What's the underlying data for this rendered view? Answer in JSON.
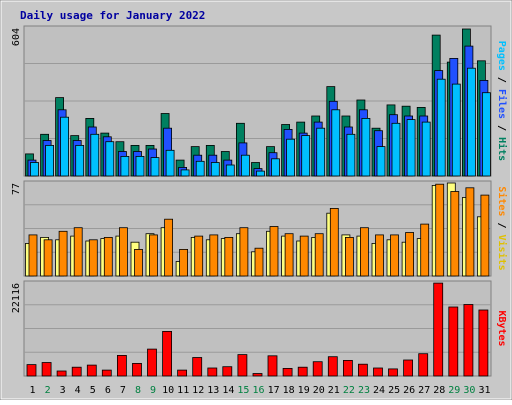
{
  "chart_data": {
    "type": "bar",
    "title": "Daily usage for January 2022",
    "days": [
      "1",
      "2",
      "3",
      "4",
      "5",
      "6",
      "7",
      "8",
      "9",
      "10",
      "11",
      "12",
      "13",
      "14",
      "15",
      "16",
      "17",
      "18",
      "19",
      "20",
      "21",
      "22",
      "23",
      "24",
      "25",
      "26",
      "27",
      "28",
      "29",
      "30",
      "31"
    ],
    "weekend_days": [
      "2",
      "8",
      "9",
      "15",
      "16",
      "22",
      "23",
      "29",
      "30"
    ],
    "panels": [
      {
        "id": "top",
        "ymax": 604,
        "ymax_label": "604",
        "axis_label_parts": [
          "Pages",
          "Files",
          "Hits"
        ],
        "axis_label_colors": [
          "#00c0ff",
          "#2050ff",
          "#008060"
        ],
        "series": [
          {
            "name": "Hits",
            "color": "#008060",
            "values": [
              90,
              170,
              320,
              165,
              235,
              175,
              140,
              125,
              125,
              255,
              65,
              120,
              125,
              100,
              215,
              55,
              120,
              210,
              220,
              245,
              365,
              245,
              310,
              195,
              290,
              285,
              280,
              575,
              465,
              600,
              470
            ]
          },
          {
            "name": "Files",
            "color": "#2050ff",
            "values": [
              65,
              145,
              270,
              145,
              200,
              160,
              100,
              100,
              110,
              195,
              35,
              85,
              85,
              65,
              135,
              30,
              95,
              190,
              175,
              220,
              305,
              200,
              270,
              185,
              250,
              245,
              245,
              430,
              480,
              530,
              390
            ]
          },
          {
            "name": "Pages",
            "color": "#00c0ff",
            "values": [
              55,
              125,
              240,
              125,
              170,
              140,
              80,
              80,
              75,
              105,
              25,
              60,
              55,
              45,
              85,
              20,
              70,
              150,
              165,
              195,
              270,
              170,
              235,
              120,
              215,
              230,
              220,
              395,
              375,
              440,
              340
            ]
          }
        ]
      },
      {
        "id": "mid",
        "ymax": 77,
        "ymax_label": "77",
        "axis_label_parts": [
          "Sites",
          "Visits"
        ],
        "axis_label_colors": [
          "#ff8800",
          "#e0c000"
        ],
        "series": [
          {
            "name": "Visits",
            "color": "#ffff80",
            "values": [
              27,
              32,
              30,
              33,
              29,
              31,
              33,
              28,
              35,
              40,
              12,
              32,
              30,
              31,
              35,
              20,
              37,
              33,
              29,
              32,
              52,
              34,
              33,
              27,
              30,
              28,
              31,
              75,
              77,
              65,
              49
            ]
          },
          {
            "name": "Sites",
            "color": "#ff8800",
            "values": [
              34,
              30,
              37,
              40,
              30,
              32,
              40,
              22,
              34,
              47,
              22,
              33,
              34,
              32,
              40,
              23,
              41,
              35,
              33,
              35,
              56,
              32,
              40,
              34,
              34,
              36,
              43,
              76,
              70,
              73,
              67
            ]
          }
        ]
      },
      {
        "id": "bot",
        "ymax": 22116,
        "ymax_label": "22116",
        "axis_label_parts": [
          "KBytes"
        ],
        "axis_label_colors": [
          "#ff0000"
        ],
        "series": [
          {
            "name": "KBytes",
            "color": "#ff0000",
            "values": [
              2700,
              3200,
              1200,
              2100,
              2600,
              1400,
              4900,
              3000,
              6400,
              10600,
              1400,
              4400,
              1900,
              2200,
              5100,
              600,
              4800,
              1800,
              2100,
              3400,
              4600,
              3700,
              2800,
              1900,
              1700,
              3800,
              5300,
              22100,
              16400,
              17000,
              15700
            ]
          }
        ]
      }
    ]
  }
}
